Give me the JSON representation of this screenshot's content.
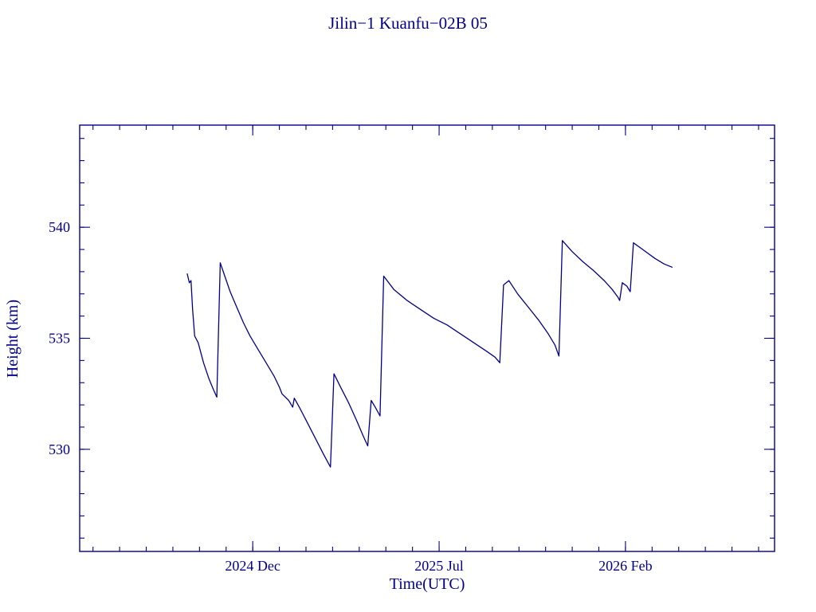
{
  "page": {
    "background": "#ffffff",
    "accent_color": "#00008B"
  },
  "chart_data": {
    "type": "line",
    "title": "Jilin−1 Kuanfu−02B 05",
    "xlabel": "Time(UTC)",
    "ylabel": "Height (km)",
    "line_color": "#00008B",
    "background": "#ffffff",
    "grid": false,
    "legend": false,
    "xlim": [
      -6.5,
      19.6
    ],
    "ylim": [
      525.4,
      544.6
    ],
    "x_axis_note": "x values are months relative to the 2024 Dec tick",
    "x_major_ticks": [
      {
        "t": 0,
        "label": "2024 Dec"
      },
      {
        "t": 7,
        "label": "2025 Jul"
      },
      {
        "t": 14,
        "label": "2026 Feb"
      }
    ],
    "x_minor_step": 1,
    "y_major_ticks": [
      {
        "v": 530,
        "label": "530"
      },
      {
        "v": 535,
        "label": "535"
      },
      {
        "v": 540,
        "label": "540"
      }
    ],
    "y_minor_step": 1,
    "series": [
      {
        "name": "height",
        "points": [
          [
            -2.46,
            537.9
          ],
          [
            -2.38,
            537.5
          ],
          [
            -2.32,
            537.6
          ],
          [
            -2.26,
            536.3
          ],
          [
            -2.18,
            535.1
          ],
          [
            -2.05,
            534.8
          ],
          [
            -1.85,
            533.9
          ],
          [
            -1.65,
            533.2
          ],
          [
            -1.48,
            532.7
          ],
          [
            -1.35,
            532.35
          ],
          [
            -1.22,
            538.4
          ],
          [
            -1.05,
            537.8
          ],
          [
            -0.85,
            537.1
          ],
          [
            -0.6,
            536.4
          ],
          [
            -0.35,
            535.7
          ],
          [
            -0.1,
            535.1
          ],
          [
            0.2,
            534.5
          ],
          [
            0.5,
            533.9
          ],
          [
            0.8,
            533.3
          ],
          [
            1.0,
            532.8
          ],
          [
            1.1,
            532.5
          ],
          [
            1.35,
            532.2
          ],
          [
            1.5,
            531.9
          ],
          [
            1.56,
            532.3
          ],
          [
            1.75,
            531.9
          ],
          [
            2.05,
            531.2
          ],
          [
            2.35,
            530.5
          ],
          [
            2.65,
            529.8
          ],
          [
            2.85,
            529.35
          ],
          [
            2.92,
            529.2
          ],
          [
            3.05,
            533.4
          ],
          [
            3.3,
            532.8
          ],
          [
            3.6,
            532.1
          ],
          [
            3.9,
            531.3
          ],
          [
            4.15,
            530.6
          ],
          [
            4.32,
            530.15
          ],
          [
            4.45,
            532.2
          ],
          [
            4.6,
            531.9
          ],
          [
            4.78,
            531.5
          ],
          [
            4.92,
            537.8
          ],
          [
            5.3,
            537.2
          ],
          [
            5.8,
            536.7
          ],
          [
            6.3,
            536.3
          ],
          [
            6.8,
            535.9
          ],
          [
            7.3,
            535.6
          ],
          [
            7.8,
            535.2
          ],
          [
            8.3,
            534.8
          ],
          [
            8.8,
            534.4
          ],
          [
            9.1,
            534.15
          ],
          [
            9.28,
            533.9
          ],
          [
            9.42,
            537.4
          ],
          [
            9.62,
            537.6
          ],
          [
            9.95,
            537.0
          ],
          [
            10.35,
            536.4
          ],
          [
            10.75,
            535.8
          ],
          [
            11.1,
            535.2
          ],
          [
            11.35,
            534.7
          ],
          [
            11.5,
            534.2
          ],
          [
            11.63,
            539.4
          ],
          [
            12.0,
            538.9
          ],
          [
            12.4,
            538.45
          ],
          [
            12.8,
            538.05
          ],
          [
            13.2,
            537.6
          ],
          [
            13.5,
            537.2
          ],
          [
            13.72,
            536.85
          ],
          [
            13.78,
            536.7
          ],
          [
            13.88,
            537.5
          ],
          [
            14.05,
            537.35
          ],
          [
            14.18,
            537.1
          ],
          [
            14.3,
            539.3
          ],
          [
            14.7,
            538.95
          ],
          [
            15.1,
            538.6
          ],
          [
            15.45,
            538.35
          ],
          [
            15.75,
            538.2
          ]
        ]
      }
    ]
  }
}
